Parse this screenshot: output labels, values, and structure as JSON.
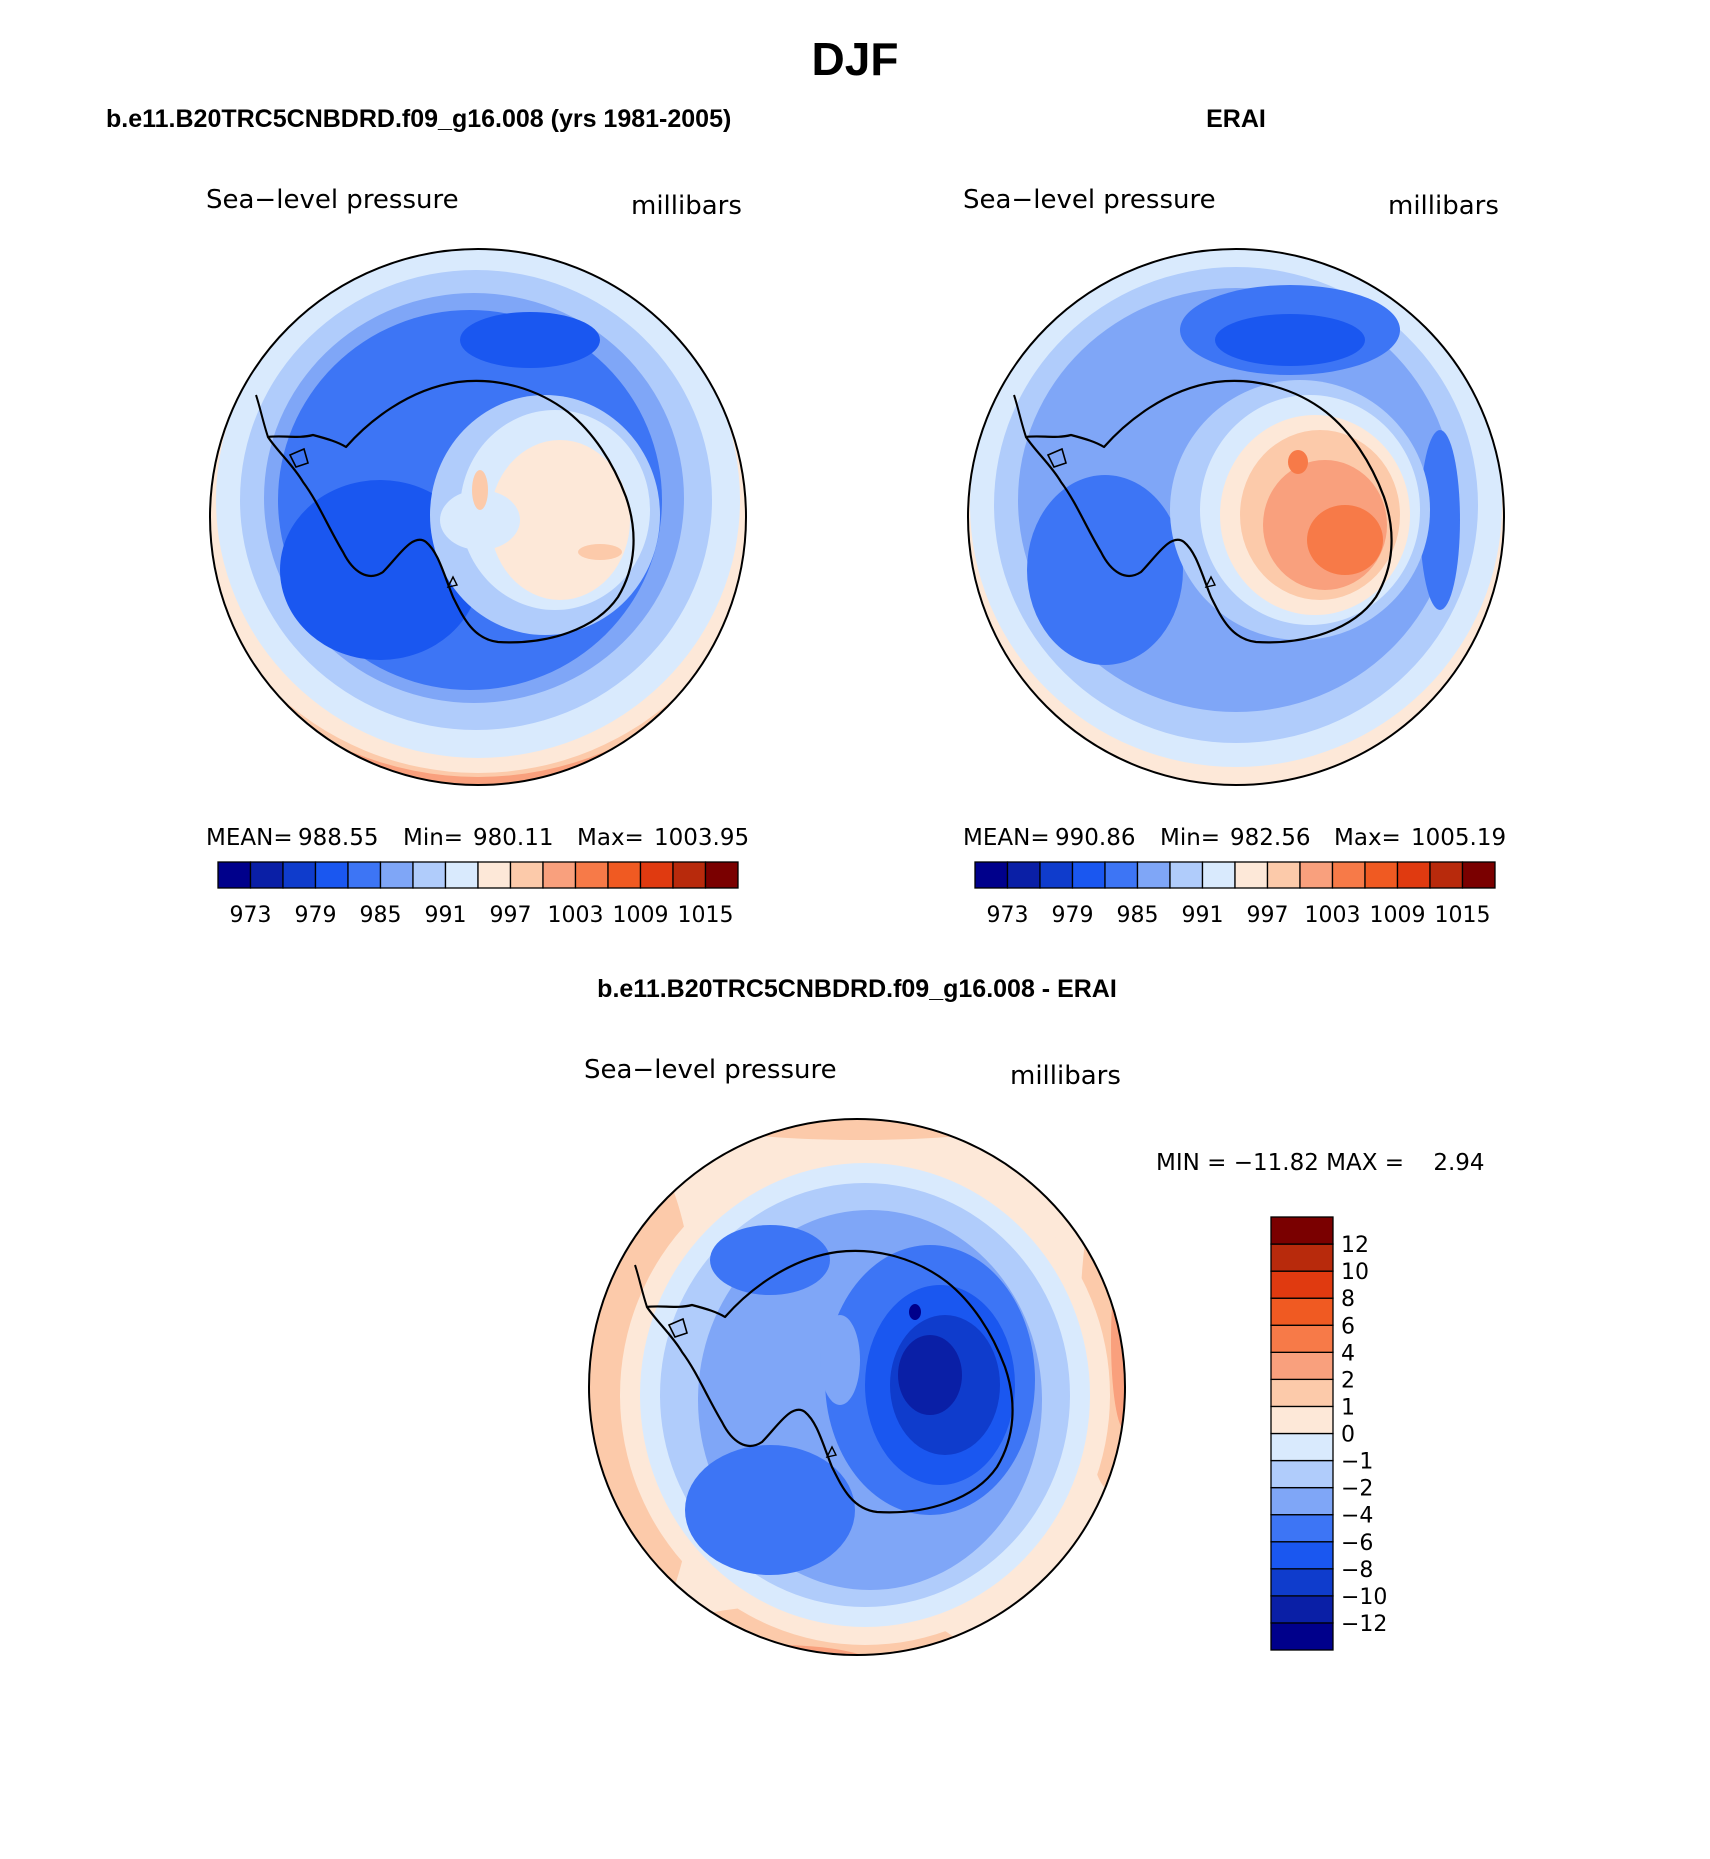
{
  "title": "DJF",
  "panels": [
    {
      "id": "model",
      "heading": "b.e11.B20TRC5CNBDRD.f09_g16.008 (yrs 1981-2005)",
      "variable": "Sea−level pressure",
      "units": "millibars",
      "stats": {
        "mean_label": "MEAN=",
        "mean": "988.55",
        "min_label": "Min=",
        "min": "980.11",
        "max_label": "Max=",
        "max": "1003.95"
      }
    },
    {
      "id": "obs",
      "heading": "ERAI",
      "variable": "Sea−level pressure",
      "units": "millibars",
      "stats": {
        "mean_label": "MEAN=",
        "mean": "990.86",
        "min_label": "Min=",
        "min": "982.56",
        "max_label": "Max=",
        "max": "1005.19"
      }
    },
    {
      "id": "diff",
      "heading": "b.e11.B20TRC5CNBDRD.f09_g16.008 - ERAI",
      "variable": "Sea−level pressure",
      "units": "millibars",
      "stats_text": "MIN = −11.82 MAX =    2.94"
    }
  ],
  "abs_colorbar": {
    "colors": [
      "#00008b",
      "#0a1fa6",
      "#0f3ccc",
      "#1a57f0",
      "#3d75f5",
      "#7fa6f7",
      "#b0ccfb",
      "#d9eafd",
      "#fde8d8",
      "#fccaaa",
      "#f9a07d",
      "#f77a48",
      "#f05a22",
      "#e03a10",
      "#b82a0c",
      "#7a0000"
    ],
    "tick_labels": [
      "973",
      "979",
      "985",
      "991",
      "997",
      "1003",
      "1009",
      "1015"
    ]
  },
  "diff_colorbar": {
    "colors_bottom_to_top": [
      "#00008b",
      "#0a1fa6",
      "#0f3ccc",
      "#1a57f0",
      "#3d75f5",
      "#7fa6f7",
      "#b0ccfb",
      "#d9eafd",
      "#fde8d8",
      "#fccaaa",
      "#f9a07d",
      "#f77a48",
      "#f05a22",
      "#e03a10",
      "#b82a0c",
      "#7a0000"
    ],
    "tick_labels_top_to_bottom": [
      "12",
      "10",
      "8",
      "6",
      "4",
      "2",
      "1",
      "0",
      "−1",
      "−2",
      "−4",
      "−6",
      "−8",
      "−10",
      "−12"
    ]
  }
}
